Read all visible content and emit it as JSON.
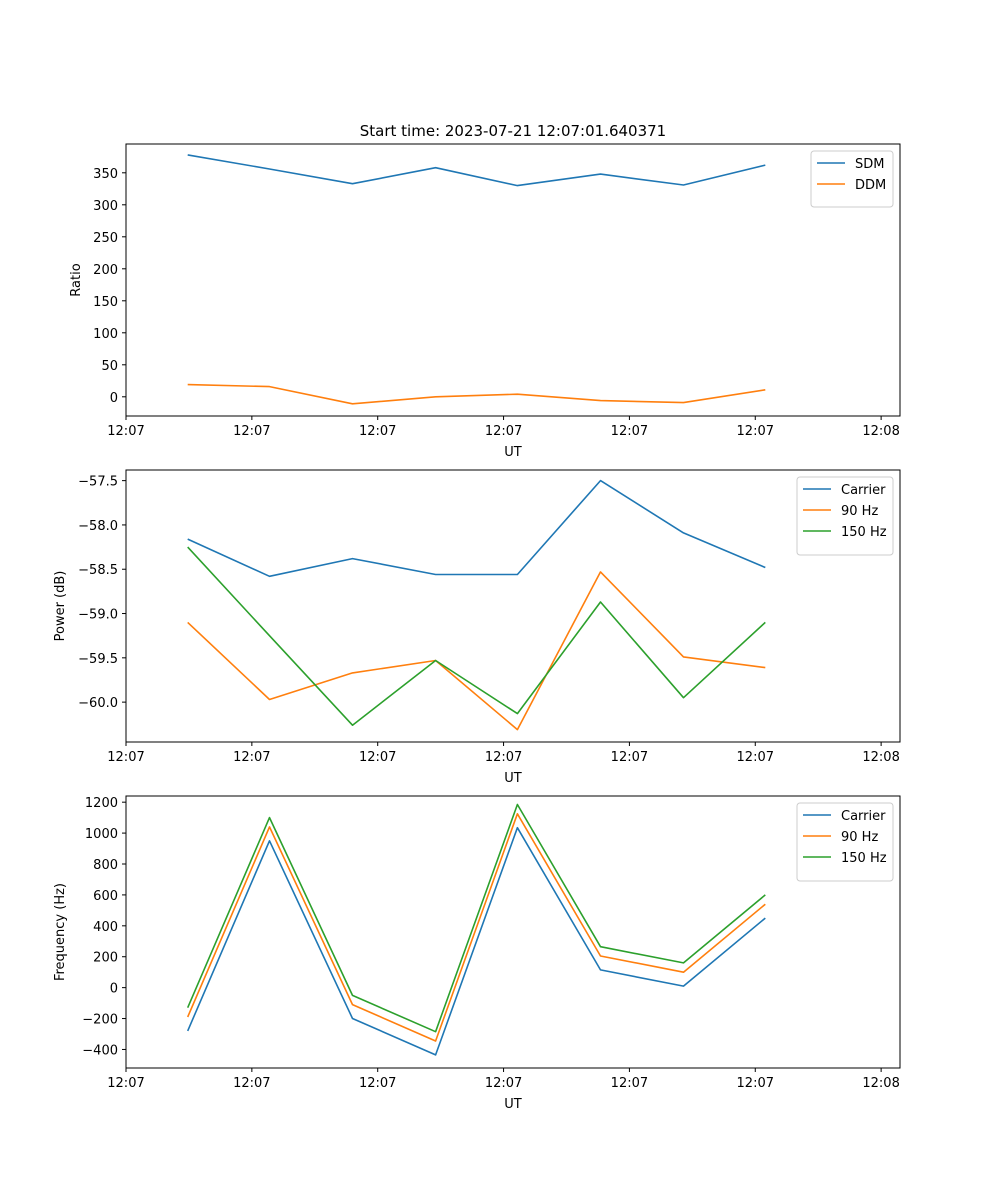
{
  "figure": {
    "title": "Start time: 2023-07-21 12:07:01.640371"
  },
  "colors": {
    "c0": "#1f77b4",
    "c1": "#ff7f0e",
    "c2": "#2ca02c",
    "axis": "#000000",
    "legend_border": "#cccccc"
  },
  "chart_data": [
    {
      "type": "line",
      "title": "Start time: 2023-07-21 12:07:01.640371",
      "xlabel": "UT",
      "ylabel": "Ratio",
      "xlim": [
        0,
        6.15
      ],
      "ylim": [
        -30,
        395
      ],
      "x_ticks": [
        0,
        1,
        2,
        3,
        4,
        5,
        6
      ],
      "x_tick_labels": [
        "12:07",
        "12:07",
        "12:07",
        "12:07",
        "12:07",
        "12:07",
        "12:08"
      ],
      "y_ticks": [
        0,
        50,
        100,
        150,
        200,
        250,
        300,
        350
      ],
      "y_tick_labels": [
        "0",
        "50",
        "100",
        "150",
        "200",
        "250",
        "300",
        "350"
      ],
      "legend_position": "top-right",
      "x": [
        0.49,
        1.14,
        1.8,
        2.46,
        3.11,
        3.77,
        4.43,
        5.08
      ],
      "series": [
        {
          "name": "SDM",
          "color_key": "c0",
          "values": [
            378,
            356,
            333,
            358,
            330,
            348,
            331,
            362
          ]
        },
        {
          "name": "DDM",
          "color_key": "c1",
          "values": [
            19,
            16,
            -11,
            0,
            4,
            -6,
            -9,
            11
          ]
        }
      ]
    },
    {
      "type": "line",
      "title": "",
      "xlabel": "UT",
      "ylabel": "Power (dB)",
      "xlim": [
        0,
        6.15
      ],
      "ylim": [
        -60.45,
        -57.38
      ],
      "x_ticks": [
        0,
        1,
        2,
        3,
        4,
        5,
        6
      ],
      "x_tick_labels": [
        "12:07",
        "12:07",
        "12:07",
        "12:07",
        "12:07",
        "12:07",
        "12:08"
      ],
      "y_ticks": [
        -60.0,
        -59.5,
        -59.0,
        -58.5,
        -58.0,
        -57.5
      ],
      "y_tick_labels": [
        "−60.0",
        "−59.5",
        "−59.0",
        "−58.5",
        "−58.0",
        "−57.5"
      ],
      "legend_position": "top-right",
      "x": [
        0.49,
        1.14,
        1.8,
        2.46,
        3.11,
        3.77,
        4.43,
        5.08
      ],
      "series": [
        {
          "name": "Carrier",
          "color_key": "c0",
          "values": [
            -58.16,
            -58.58,
            -58.38,
            -58.56,
            -58.56,
            -57.5,
            -58.09,
            -58.48
          ]
        },
        {
          "name": "90 Hz",
          "color_key": "c1",
          "values": [
            -59.1,
            -59.97,
            -59.67,
            -59.53,
            -60.31,
            -58.53,
            -59.49,
            -59.61
          ]
        },
        {
          "name": "150 Hz",
          "color_key": "c2",
          "values": [
            -58.25,
            -59.25,
            -60.26,
            -59.53,
            -60.13,
            -58.87,
            -59.95,
            -59.1
          ]
        }
      ]
    },
    {
      "type": "line",
      "title": "",
      "xlabel": "UT",
      "ylabel": "Frequency (Hz)",
      "xlim": [
        0,
        6.15
      ],
      "ylim": [
        -520,
        1240
      ],
      "x_ticks": [
        0,
        1,
        2,
        3,
        4,
        5,
        6
      ],
      "x_tick_labels": [
        "12:07",
        "12:07",
        "12:07",
        "12:07",
        "12:07",
        "12:07",
        "12:08"
      ],
      "y_ticks": [
        -400,
        -200,
        0,
        200,
        400,
        600,
        800,
        1000,
        1200
      ],
      "y_tick_labels": [
        "−400",
        "−200",
        "0",
        "200",
        "400",
        "600",
        "800",
        "1000",
        "1200"
      ],
      "legend_position": "top-right",
      "x": [
        0.49,
        1.14,
        1.8,
        2.46,
        3.11,
        3.77,
        4.43,
        5.08
      ],
      "series": [
        {
          "name": "Carrier",
          "color_key": "c0",
          "values": [
            -280,
            950,
            -200,
            -435,
            1035,
            115,
            10,
            450
          ]
        },
        {
          "name": "90 Hz",
          "color_key": "c1",
          "values": [
            -190,
            1040,
            -110,
            -345,
            1125,
            205,
            100,
            540
          ]
        },
        {
          "name": "150 Hz",
          "color_key": "c2",
          "values": [
            -130,
            1100,
            -50,
            -285,
            1185,
            265,
            160,
            600
          ]
        }
      ]
    }
  ]
}
